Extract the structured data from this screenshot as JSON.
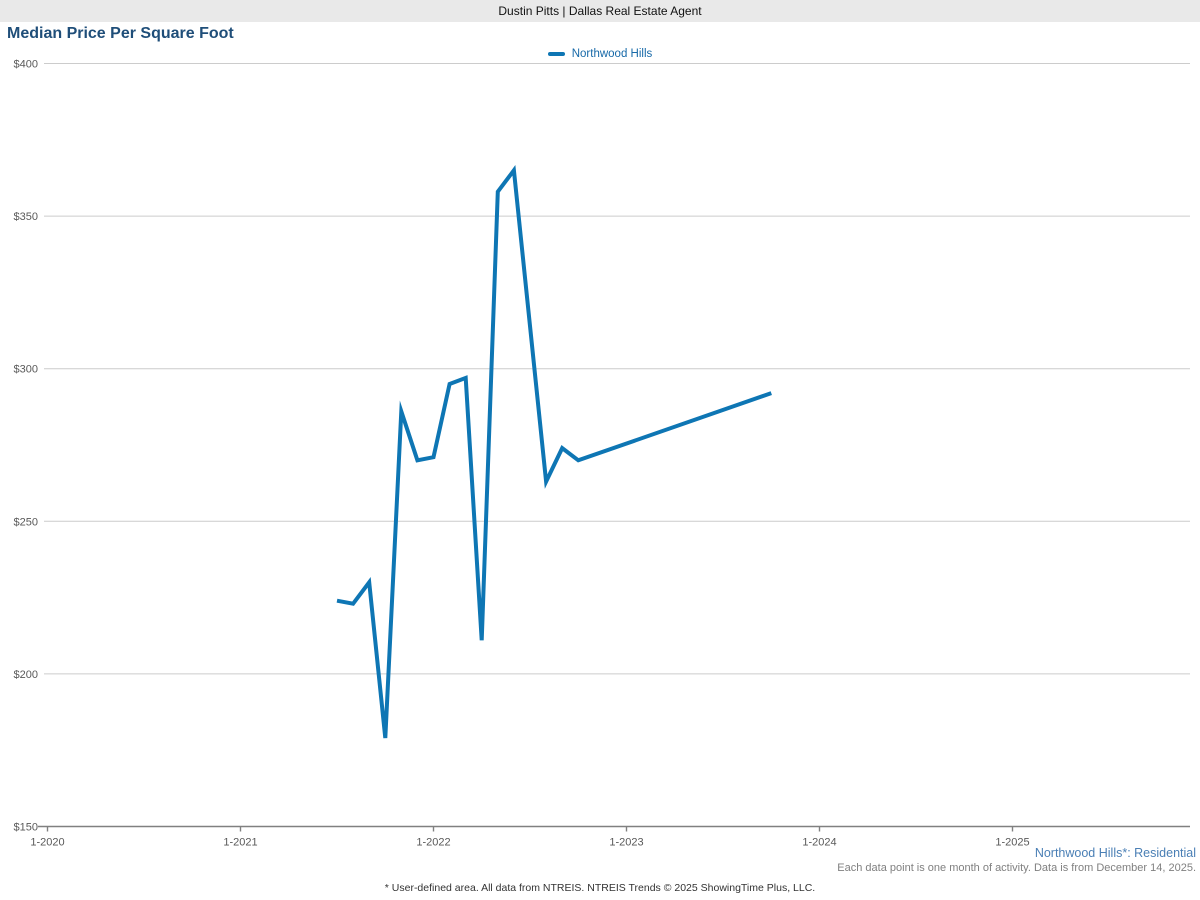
{
  "header": {
    "title": "Dustin Pitts | Dallas Real Estate Agent"
  },
  "chart": {
    "title": "Median Price Per Square Foot"
  },
  "legend": {
    "label": "Northwood Hills"
  },
  "footer": {
    "series_note": "Northwood Hills*: Residential",
    "data_note": "Each data point is one month of activity. Data is from December 14, 2025.",
    "disclaimer": "* User-defined area. All data from NTREIS. NTREIS Trends © 2025 ShowingTime Plus, LLC."
  },
  "colors": {
    "line": "#0e76b4",
    "title_text": "#1f4e79",
    "legend_text": "#1769a8",
    "grid": "#cccccc",
    "axis": "#808080",
    "tick_text": "#595959",
    "header_bg": "#e9e9e9",
    "footer_link": "#4a7fb5",
    "footer_note": "#808080"
  },
  "chart_data": {
    "type": "line",
    "title": "Median Price Per Square Foot",
    "legend_position": "top-center",
    "grid": "horizontal-only",
    "y_unit": "$ per square foot",
    "ylim": [
      150,
      400
    ],
    "y_ticks": [
      "$400",
      "$350",
      "$300",
      "$250",
      "$200",
      "$150"
    ],
    "x_ticks": [
      "1-2020",
      "1-2021",
      "1-2022",
      "1-2023",
      "1-2024",
      "1-2025"
    ],
    "series": [
      {
        "name": "Northwood Hills",
        "points": [
          [
            "7-2021",
            224
          ],
          [
            "8-2021",
            223
          ],
          [
            "9-2021",
            230
          ],
          [
            "10-2021",
            179
          ],
          [
            "11-2021",
            286
          ],
          [
            "12-2021",
            270
          ],
          [
            "1-2022",
            271
          ],
          [
            "2-2022",
            295
          ],
          [
            "3-2022",
            297
          ],
          [
            "4-2022",
            211
          ],
          [
            "5-2022",
            358
          ],
          [
            "6-2022",
            365
          ],
          [
            "8-2022",
            263
          ],
          [
            "9-2022",
            274
          ],
          [
            "10-2022",
            270
          ],
          [
            "10-2023",
            292
          ]
        ],
        "note": "Months not listed (e.g. 7-2022, 11-2022 through 9-2023) have no data; line connects available months directly."
      }
    ]
  }
}
